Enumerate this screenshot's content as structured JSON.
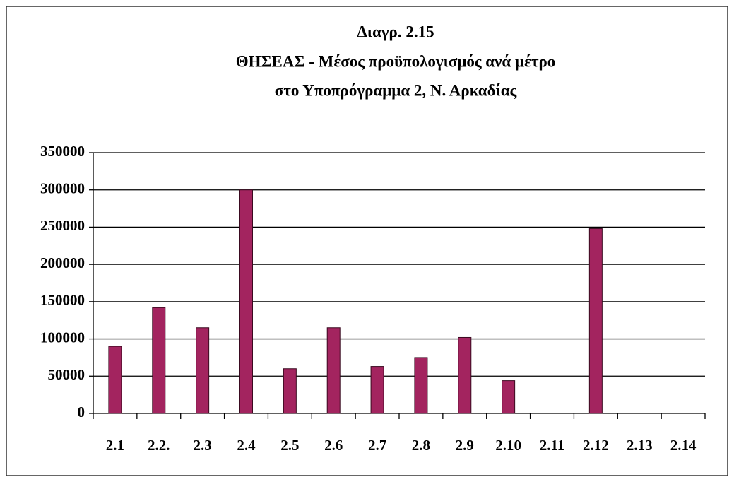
{
  "chart_data": {
    "type": "bar",
    "title": [
      "Διαγρ. 2.15",
      "ΘΗΣΕΑΣ - Μέσος προϋπολογισμός ανά μέτρο",
      "στο Υποπρόγραμμα 2, Ν. Αρκαδίας"
    ],
    "categories": [
      "2.1",
      "2.2.",
      "2.3",
      "2.4",
      "2.5",
      "2.6",
      "2.7",
      "2.8",
      "2.9",
      "2.10",
      "2.11",
      "2.12",
      "2.13",
      "2.14"
    ],
    "values": [
      90000,
      142000,
      115000,
      300000,
      60000,
      115000,
      63000,
      75000,
      102000,
      44000,
      null,
      248000,
      null,
      null
    ],
    "color": "#a3245f",
    "ylim": [
      0,
      350000
    ],
    "yticks": [
      0,
      50000,
      100000,
      150000,
      200000,
      250000,
      300000,
      350000
    ],
    "grid": true
  }
}
